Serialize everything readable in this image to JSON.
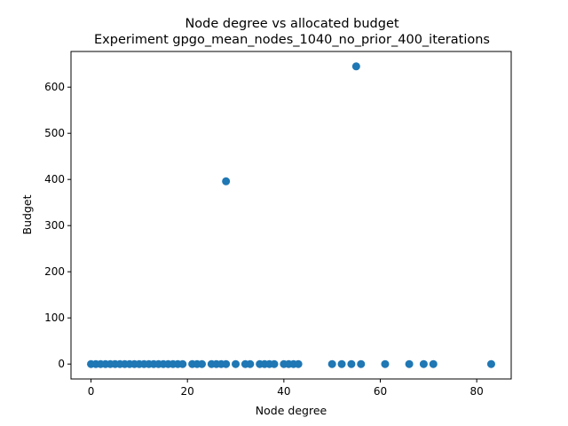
{
  "chart_data": {
    "type": "scatter",
    "title": "Node degree vs allocated budget",
    "subtitle": "Experiment gpgo_mean_nodes_1040_no_prior_400_iterations",
    "xlabel": "Node degree",
    "ylabel": "Budget",
    "xlim": [
      -4.15,
      87.15
    ],
    "ylim": [
      -32.3,
      677.3
    ],
    "xticks": [
      0,
      20,
      40,
      60,
      80
    ],
    "yticks": [
      0,
      100,
      200,
      300,
      400,
      500,
      600
    ],
    "grid": false,
    "color": "#1f77b4",
    "points": [
      {
        "x": 0,
        "y": 0
      },
      {
        "x": 1,
        "y": 0
      },
      {
        "x": 2,
        "y": 0
      },
      {
        "x": 3,
        "y": 0
      },
      {
        "x": 4,
        "y": 0
      },
      {
        "x": 5,
        "y": 0
      },
      {
        "x": 6,
        "y": 0
      },
      {
        "x": 7,
        "y": 0
      },
      {
        "x": 8,
        "y": 0
      },
      {
        "x": 9,
        "y": 0
      },
      {
        "x": 10,
        "y": 0
      },
      {
        "x": 11,
        "y": 0
      },
      {
        "x": 12,
        "y": 0
      },
      {
        "x": 13,
        "y": 0
      },
      {
        "x": 14,
        "y": 0
      },
      {
        "x": 15,
        "y": 0
      },
      {
        "x": 16,
        "y": 0
      },
      {
        "x": 17,
        "y": 0
      },
      {
        "x": 18,
        "y": 0
      },
      {
        "x": 19,
        "y": 0
      },
      {
        "x": 21,
        "y": 0
      },
      {
        "x": 22,
        "y": 0
      },
      {
        "x": 23,
        "y": 0
      },
      {
        "x": 25,
        "y": 0
      },
      {
        "x": 26,
        "y": 0
      },
      {
        "x": 27,
        "y": 0
      },
      {
        "x": 28,
        "y": 0
      },
      {
        "x": 28,
        "y": 396
      },
      {
        "x": 30,
        "y": 0
      },
      {
        "x": 32,
        "y": 0
      },
      {
        "x": 33,
        "y": 0
      },
      {
        "x": 35,
        "y": 0
      },
      {
        "x": 36,
        "y": 0
      },
      {
        "x": 37,
        "y": 0
      },
      {
        "x": 38,
        "y": 0
      },
      {
        "x": 40,
        "y": 0
      },
      {
        "x": 41,
        "y": 0
      },
      {
        "x": 42,
        "y": 0
      },
      {
        "x": 43,
        "y": 0
      },
      {
        "x": 50,
        "y": 0
      },
      {
        "x": 52,
        "y": 0
      },
      {
        "x": 54,
        "y": 0
      },
      {
        "x": 55,
        "y": 645
      },
      {
        "x": 56,
        "y": 0
      },
      {
        "x": 61,
        "y": 0
      },
      {
        "x": 66,
        "y": 0
      },
      {
        "x": 69,
        "y": 0
      },
      {
        "x": 71,
        "y": 0
      },
      {
        "x": 83,
        "y": 0
      }
    ]
  }
}
